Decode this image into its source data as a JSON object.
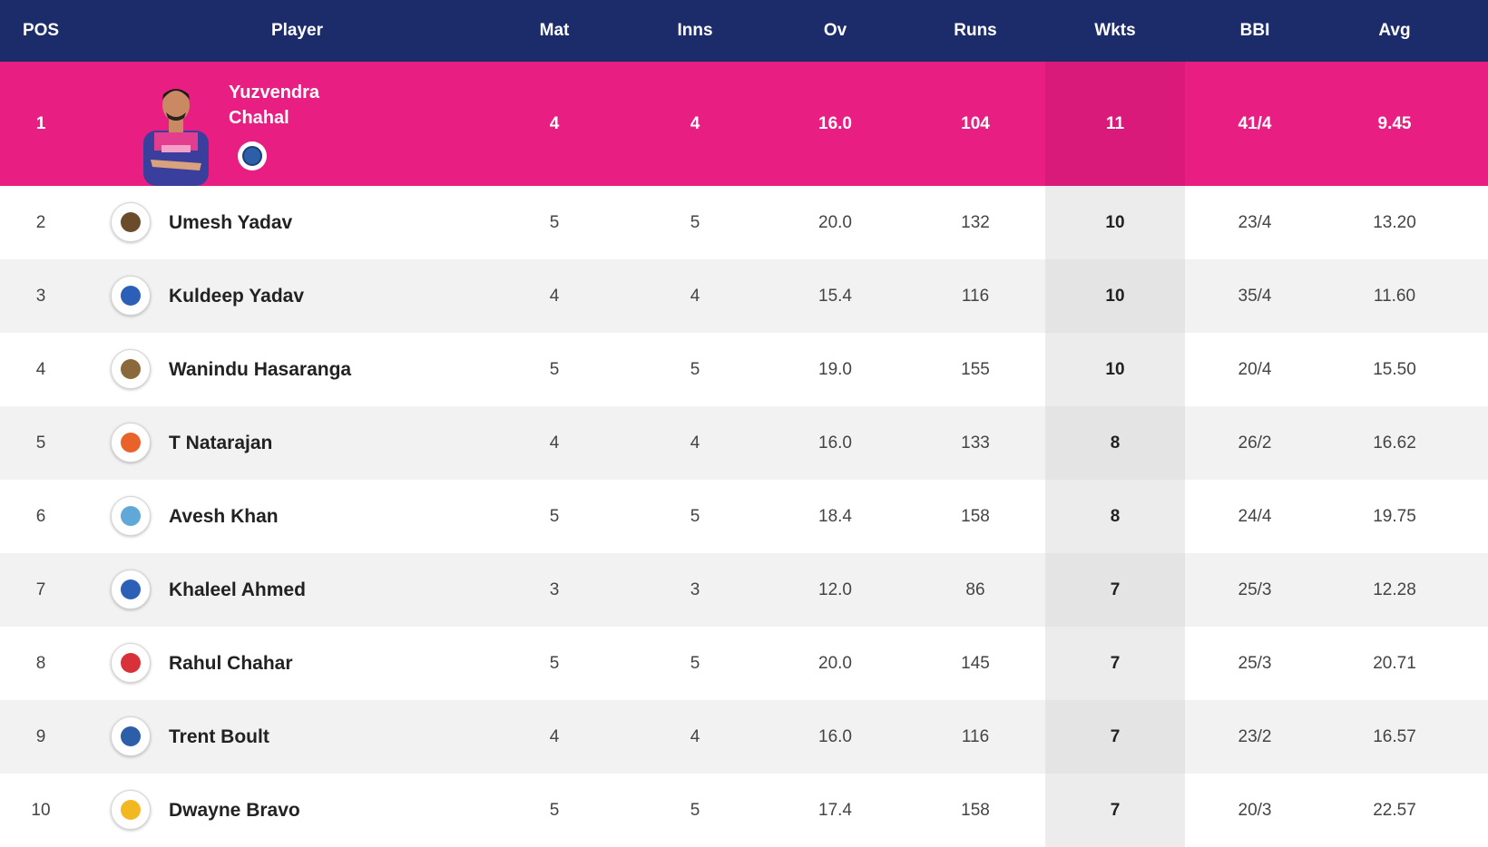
{
  "header": {
    "pos": "POS",
    "player": "Player",
    "mat": "Mat",
    "inns": "Inns",
    "ov": "Ov",
    "runs": "Runs",
    "wkts": "Wkts",
    "bbi": "BBI",
    "avg": "Avg"
  },
  "colors": {
    "header_bg": "#1c2c6b",
    "highlight_bg": "#e91e82"
  },
  "leader": {
    "pos": "1",
    "first_name": "Yuzvendra",
    "last_name": "Chahal",
    "mat": "4",
    "inns": "4",
    "ov": "16.0",
    "runs": "104",
    "wkts": "11",
    "bbi": "41/4",
    "avg": "9.45",
    "team_icon": "rajasthan-royals-icon"
  },
  "rows": [
    {
      "pos": "2",
      "name": "Umesh Yadav",
      "mat": "5",
      "inns": "5",
      "ov": "20.0",
      "runs": "132",
      "wkts": "10",
      "bbi": "23/4",
      "avg": "13.20",
      "team_icon": "kolkata-knight-riders-icon",
      "color": "#6b4c2a"
    },
    {
      "pos": "3",
      "name": "Kuldeep Yadav",
      "mat": "4",
      "inns": "4",
      "ov": "15.4",
      "runs": "116",
      "wkts": "10",
      "bbi": "35/4",
      "avg": "11.60",
      "team_icon": "delhi-capitals-icon",
      "color": "#2c5fb8"
    },
    {
      "pos": "4",
      "name": "Wanindu Hasaranga",
      "mat": "5",
      "inns": "5",
      "ov": "19.0",
      "runs": "155",
      "wkts": "10",
      "bbi": "20/4",
      "avg": "15.50",
      "team_icon": "royal-challengers-icon",
      "color": "#8a6a3a"
    },
    {
      "pos": "5",
      "name": "T Natarajan",
      "mat": "4",
      "inns": "4",
      "ov": "16.0",
      "runs": "133",
      "wkts": "8",
      "bbi": "26/2",
      "avg": "16.62",
      "team_icon": "sunrisers-hyderabad-icon",
      "color": "#e8622a"
    },
    {
      "pos": "6",
      "name": "Avesh Khan",
      "mat": "5",
      "inns": "5",
      "ov": "18.4",
      "runs": "158",
      "wkts": "8",
      "bbi": "24/4",
      "avg": "19.75",
      "team_icon": "lucknow-super-giants-icon",
      "color": "#5fa8d8"
    },
    {
      "pos": "7",
      "name": "Khaleel Ahmed",
      "mat": "3",
      "inns": "3",
      "ov": "12.0",
      "runs": "86",
      "wkts": "7",
      "bbi": "25/3",
      "avg": "12.28",
      "team_icon": "delhi-capitals-icon",
      "color": "#2c5fb8"
    },
    {
      "pos": "8",
      "name": "Rahul Chahar",
      "mat": "5",
      "inns": "5",
      "ov": "20.0",
      "runs": "145",
      "wkts": "7",
      "bbi": "25/3",
      "avg": "20.71",
      "team_icon": "punjab-kings-icon",
      "color": "#d8313a"
    },
    {
      "pos": "9",
      "name": "Trent Boult",
      "mat": "4",
      "inns": "4",
      "ov": "16.0",
      "runs": "116",
      "wkts": "7",
      "bbi": "23/2",
      "avg": "16.57",
      "team_icon": "rajasthan-royals-icon",
      "color": "#2d5ea8"
    },
    {
      "pos": "10",
      "name": "Dwayne Bravo",
      "mat": "5",
      "inns": "5",
      "ov": "17.4",
      "runs": "158",
      "wkts": "7",
      "bbi": "20/3",
      "avg": "22.57",
      "team_icon": "chennai-super-kings-icon",
      "color": "#f2b820"
    }
  ]
}
